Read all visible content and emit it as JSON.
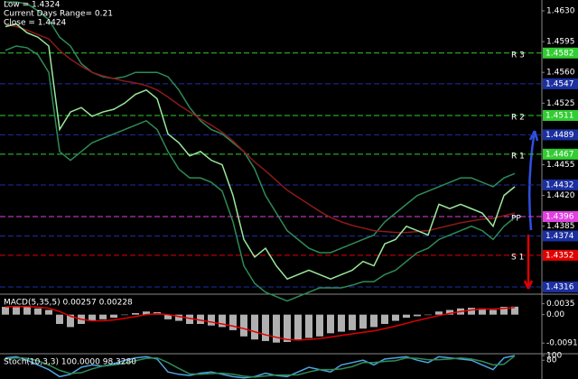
{
  "chart_data": [
    {
      "type": "line",
      "info": [
        "Low = 1.4324",
        "Current Days Range= 0.21",
        "Close = 1.4424"
      ],
      "ylim": [
        1.43088,
        1.46423
      ],
      "yticks": [
        {
          "value": 1.463,
          "label": "1.4630"
        },
        {
          "value": 1.4595,
          "label": "1.4595"
        },
        {
          "value": 1.456,
          "label": "1.4560"
        },
        {
          "value": 1.4525,
          "label": "1.4525"
        },
        {
          "value": 1.4455,
          "label": "1.4455"
        },
        {
          "value": 1.442,
          "label": "1.4420"
        },
        {
          "value": 1.4385,
          "label": "1.4385"
        }
      ],
      "levels": [
        {
          "value": 1.4582,
          "label": "1.4582",
          "name": "R 3",
          "color": "#32cd32"
        },
        {
          "value": 1.4547,
          "label": "1.4547",
          "color": "#1c2fa0"
        },
        {
          "value": 1.4511,
          "label": "1.4511",
          "name": "R 2",
          "color": "#32cd32"
        },
        {
          "value": 1.4489,
          "label": "1.4489",
          "color": "#1c2fa0"
        },
        {
          "value": 1.4467,
          "label": "1.4467",
          "name": "R 1",
          "color": "#32cd32"
        },
        {
          "value": 1.4432,
          "label": "1.4432",
          "color": "#1c2fa0"
        },
        {
          "value": 1.4396,
          "label": "1.4396",
          "name": "PP",
          "color": "#e040e0"
        },
        {
          "value": 1.4374,
          "label": "1.4374",
          "color": "#1c2fa0"
        },
        {
          "value": 1.4352,
          "label": "1.4352",
          "name": "S 1",
          "color": "#e00000"
        },
        {
          "value": 1.4316,
          "label": "1.4316",
          "color": "#1c2fa0"
        }
      ],
      "series": [
        {
          "color": "#2e8b57",
          "values": [
            1.464,
            1.464,
            1.4638,
            1.463,
            1.462,
            1.46,
            1.459,
            1.457,
            1.456,
            1.4555,
            1.4553,
            1.4555,
            1.456,
            1.456,
            1.456,
            1.4555,
            1.454,
            1.452,
            1.4505,
            1.4495,
            1.449,
            1.448,
            1.447,
            1.445,
            1.442,
            1.44,
            1.438,
            1.437,
            1.436,
            1.4355,
            1.4355,
            1.436,
            1.4365,
            1.437,
            1.4375,
            1.439,
            1.44,
            1.441,
            1.442,
            1.4425,
            1.443,
            1.4435,
            1.444,
            1.444,
            1.4435,
            1.443,
            1.444,
            1.4445
          ]
        },
        {
          "color": "#2e8b57",
          "values": [
            1.4585,
            1.459,
            1.4588,
            1.458,
            1.456,
            1.447,
            1.446,
            1.447,
            1.448,
            1.4485,
            1.449,
            1.4495,
            1.45,
            1.4505,
            1.4495,
            1.447,
            1.445,
            1.444,
            1.444,
            1.4435,
            1.4425,
            1.439,
            1.434,
            1.432,
            1.431,
            1.4305,
            1.43,
            1.4305,
            1.431,
            1.4315,
            1.4315,
            1.4315,
            1.4318,
            1.4322,
            1.4322,
            1.433,
            1.4335,
            1.4345,
            1.4355,
            1.436,
            1.437,
            1.4375,
            1.438,
            1.4385,
            1.438,
            1.437,
            1.4385,
            1.4395
          ]
        },
        {
          "color": "#8b1a1a",
          "values": [
            1.4615,
            1.4612,
            1.4608,
            1.4603,
            1.4598,
            1.4585,
            1.4575,
            1.4567,
            1.456,
            1.4556,
            1.4553,
            1.455,
            1.4548,
            1.4545,
            1.454,
            1.4532,
            1.4523,
            1.4515,
            1.4507,
            1.45,
            1.4492,
            1.4482,
            1.447,
            1.4458,
            1.4448,
            1.4437,
            1.4426,
            1.4418,
            1.441,
            1.4402,
            1.4395,
            1.439,
            1.4386,
            1.4383,
            1.438,
            1.4379,
            1.4378,
            1.4378,
            1.4379,
            1.438,
            1.4383,
            1.4386,
            1.4389,
            1.4391,
            1.4393,
            1.4394,
            1.4397,
            1.44
          ]
        },
        {
          "color": "#9be89b",
          "values": [
            1.4612,
            1.4615,
            1.4605,
            1.46,
            1.459,
            1.4495,
            1.4515,
            1.452,
            1.451,
            1.4515,
            1.4518,
            1.4525,
            1.4535,
            1.454,
            1.453,
            1.449,
            1.448,
            1.4465,
            1.447,
            1.446,
            1.4455,
            1.442,
            1.437,
            1.435,
            1.436,
            1.434,
            1.4325,
            1.433,
            1.4335,
            1.433,
            1.4325,
            1.433,
            1.4335,
            1.4345,
            1.434,
            1.4365,
            1.437,
            1.4385,
            1.438,
            1.4375,
            1.441,
            1.4405,
            1.441,
            1.4405,
            1.44,
            1.4385,
            1.442,
            1.443
          ]
        }
      ]
    },
    {
      "type": "macd",
      "title": "MACD(5,35,5) 0.00257 0.00228",
      "ylim": [
        -0.012,
        0.006
      ],
      "yticks": [
        0.0035,
        {
          "value": 0,
          "label": "0.00"
        },
        -0.00915
      ],
      "series": [
        {
          "color": "#b0b0b0",
          "values": [
            0.0025,
            0.0028,
            0.0025,
            0.002,
            0.0015,
            -0.003,
            -0.004,
            -0.003,
            -0.002,
            -0.0015,
            -0.001,
            0,
            0.0005,
            0.001,
            0.0008,
            -0.0015,
            -0.002,
            -0.003,
            -0.003,
            -0.0035,
            -0.004,
            -0.005,
            -0.007,
            -0.008,
            -0.0085,
            -0.009,
            -0.0088,
            -0.008,
            -0.0075,
            -0.007,
            -0.006,
            -0.0055,
            -0.005,
            -0.0045,
            -0.004,
            -0.003,
            -0.002,
            -0.001,
            -0.0005,
            0,
            0.001,
            0.0015,
            0.002,
            0.0022,
            0.002,
            0.0015,
            0.0025,
            0.00257
          ]
        },
        {
          "color": "#e00000",
          "values": [
            0.0025,
            0.0026,
            0.0026,
            0.0024,
            0.0021,
            0.001,
            -0.0005,
            -0.0015,
            -0.002,
            -0.002,
            -0.0017,
            -0.0012,
            -0.0006,
            0,
            0.0003,
            0,
            -0.0006,
            -0.0012,
            -0.0018,
            -0.0024,
            -0.003,
            -0.0037,
            -0.0045,
            -0.0055,
            -0.0065,
            -0.0073,
            -0.008,
            -0.0082,
            -0.008,
            -0.0077,
            -0.0072,
            -0.0067,
            -0.0062,
            -0.0057,
            -0.0052,
            -0.0045,
            -0.0037,
            -0.0028,
            -0.0019,
            -0.0011,
            -0.0003,
            0.0004,
            0.001,
            0.0015,
            0.0018,
            0.0018,
            0.002,
            0.00228
          ]
        }
      ]
    },
    {
      "type": "stoch",
      "title": "Stoch(10,3,3) 100.0000 98.3280",
      "ylim": [
        0,
        100
      ],
      "yticks": [
        100,
        80
      ],
      "series": [
        {
          "color": "#4fa3e0",
          "values": [
            90,
            95,
            80,
            60,
            40,
            10,
            20,
            50,
            60,
            55,
            65,
            80,
            90,
            95,
            85,
            30,
            20,
            15,
            25,
            30,
            20,
            10,
            5,
            10,
            25,
            15,
            10,
            30,
            50,
            40,
            30,
            60,
            70,
            80,
            60,
            85,
            90,
            95,
            80,
            70,
            95,
            90,
            85,
            80,
            60,
            40,
            90,
            100
          ]
        },
        {
          "color": "#2e8b57",
          "values": [
            85,
            90,
            88,
            78,
            60,
            37,
            23,
            27,
            43,
            55,
            60,
            67,
            78,
            88,
            90,
            70,
            45,
            22,
            20,
            23,
            25,
            20,
            12,
            8,
            13,
            17,
            17,
            18,
            30,
            40,
            40,
            43,
            53,
            70,
            70,
            75,
            78,
            90,
            88,
            82,
            82,
            85,
            90,
            85,
            75,
            60,
            63,
            98.328
          ]
        }
      ]
    }
  ]
}
